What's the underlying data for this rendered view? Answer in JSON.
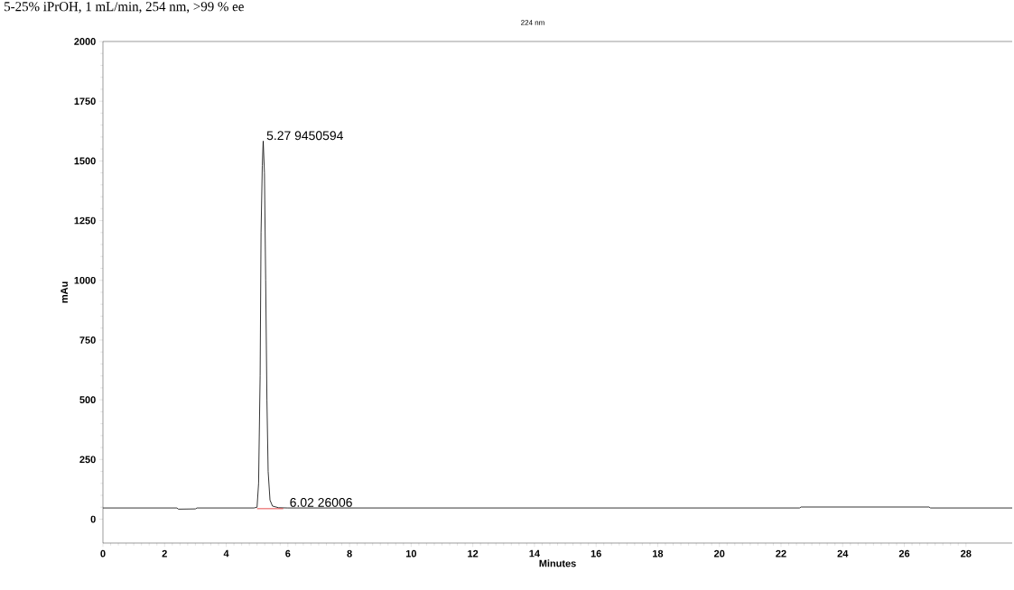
{
  "chart_data": {
    "type": "line",
    "title": "5-25% iPrOH, 1 mL/min, 254 nm, >99 % ee",
    "subtitle": "224 nm",
    "xlabel": "Minutes",
    "ylabel": "mAu",
    "xlim": [
      0,
      29.5
    ],
    "ylim": [
      -100,
      2000
    ],
    "xticks": [
      0,
      2,
      4,
      6,
      8,
      10,
      12,
      14,
      16,
      18,
      20,
      22,
      24,
      26,
      28
    ],
    "yticks": [
      0,
      250,
      500,
      750,
      1000,
      1250,
      1500,
      1750,
      2000
    ],
    "series": [
      {
        "color": "#000000",
        "x": [
          0,
          2.4,
          2.45,
          3.0,
          3.05,
          4.9,
          5.0,
          5.05,
          5.1,
          5.13,
          5.17,
          5.2,
          5.24,
          5.28,
          5.32,
          5.36,
          5.42,
          5.5,
          5.7,
          6.0,
          22.6,
          22.65,
          26.8,
          26.85,
          29.5
        ],
        "values": [
          47,
          47,
          42,
          43,
          47,
          47,
          50,
          150,
          600,
          1200,
          1480,
          1583,
          1450,
          1000,
          500,
          200,
          80,
          55,
          48,
          47,
          47,
          51,
          51,
          47,
          47
        ]
      },
      {
        "color": "#e02020",
        "x": [
          5.0,
          5.85
        ],
        "values": [
          44,
          44
        ]
      }
    ],
    "annotations": [
      {
        "text": "5.27  9450594",
        "x": 5.27,
        "y": 1583
      },
      {
        "text": "6.02  26006",
        "x": 6.02,
        "y": 47
      }
    ],
    "grid": false,
    "marker": "none",
    "line_style": "solid"
  }
}
